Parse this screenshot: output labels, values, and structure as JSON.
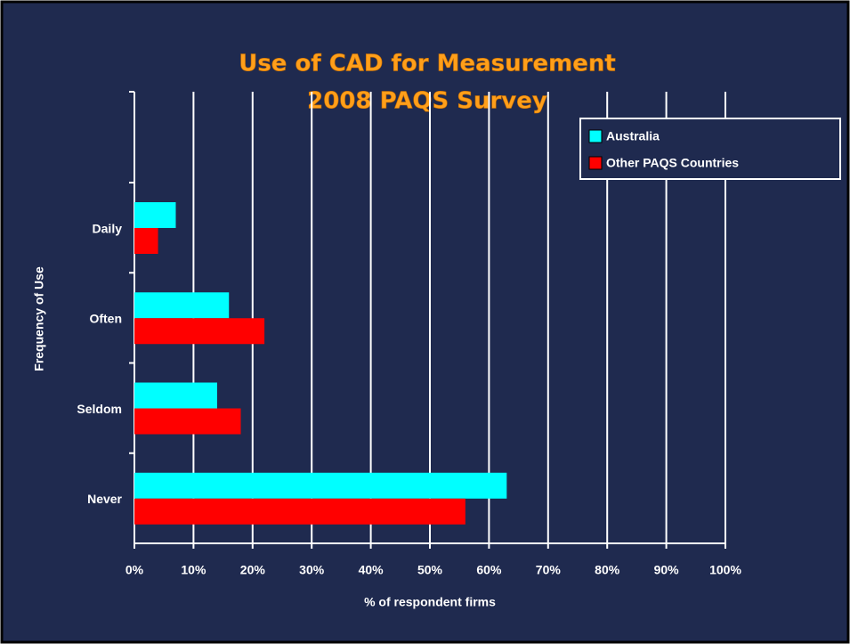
{
  "chart_data": {
    "type": "bar",
    "orientation": "horizontal",
    "title": [
      "Use of CAD for Measurement",
      "2008 PAQS Survey"
    ],
    "x_label": "% of respondent firms",
    "y_label": "Frequency of Use",
    "categories": [
      "Daily",
      "Often",
      "Seldom",
      "Never"
    ],
    "series": [
      {
        "name": "Australia",
        "color": "#00ffff",
        "values": [
          7,
          16,
          14,
          63
        ]
      },
      {
        "name": "Other PAQS Countries",
        "color": "#ff0000",
        "values": [
          4,
          22,
          18,
          56
        ]
      }
    ],
    "xlim": [
      0,
      100
    ],
    "xticks": [
      {
        "value": 0,
        "label": "0%"
      },
      {
        "value": 10,
        "label": "10%"
      },
      {
        "value": 20,
        "label": "20%"
      },
      {
        "value": 30,
        "label": "30%"
      },
      {
        "value": 40,
        "label": "40%"
      },
      {
        "value": 50,
        "label": "50%"
      },
      {
        "value": 60,
        "label": "60%"
      },
      {
        "value": 70,
        "label": "70%"
      },
      {
        "value": 80,
        "label": "80%"
      },
      {
        "value": 90,
        "label": "90%"
      },
      {
        "value": 100,
        "label": "100%"
      }
    ],
    "grid": true,
    "legend": "top-right"
  }
}
